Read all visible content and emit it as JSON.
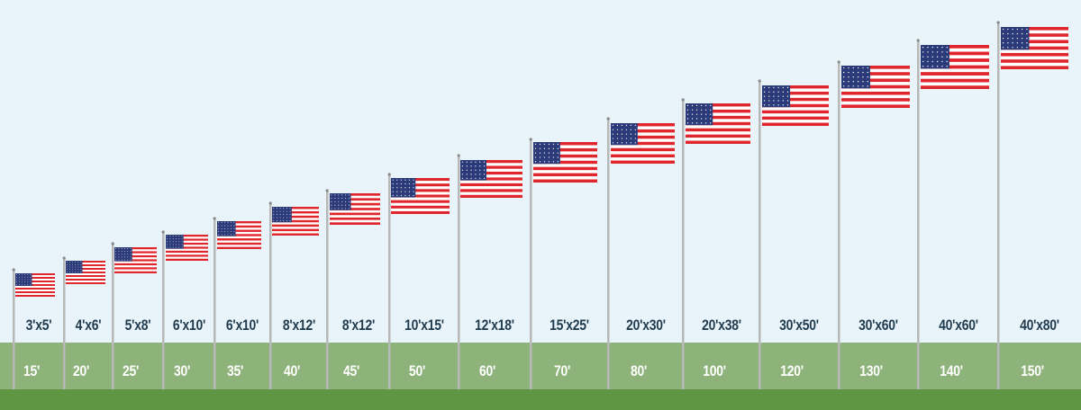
{
  "colors": {
    "sky": "#e9f4fa",
    "grass": "#8db37a",
    "soil": "#5e9644",
    "label_dark": "#1f3b4d",
    "flag_red": "#e0262d",
    "flag_blue": "#2b3a78",
    "pole": "#b8b8b8"
  },
  "poles": [
    {
      "height": "15'",
      "flag_size": "3'x5'"
    },
    {
      "height": "20'",
      "flag_size": "4'x6'"
    },
    {
      "height": "25'",
      "flag_size": "5'x8'"
    },
    {
      "height": "30'",
      "flag_size": "6'x10'"
    },
    {
      "height": "35'",
      "flag_size": "6'x10'"
    },
    {
      "height": "40'",
      "flag_size": "8'x12'"
    },
    {
      "height": "45'",
      "flag_size": "8'x12'"
    },
    {
      "height": "50'",
      "flag_size": "10'x15'"
    },
    {
      "height": "60'",
      "flag_size": "12'x18'"
    },
    {
      "height": "70'",
      "flag_size": "15'x25'"
    },
    {
      "height": "80'",
      "flag_size": "20'x30'"
    },
    {
      "height": "100'",
      "flag_size": "20'x38'"
    },
    {
      "height": "120'",
      "flag_size": "30'x50'"
    },
    {
      "height": "130'",
      "flag_size": "30'x60'"
    },
    {
      "height": "140'",
      "flag_size": "40'x60'"
    },
    {
      "height": "150'",
      "flag_size": "40'x80'"
    }
  ]
}
